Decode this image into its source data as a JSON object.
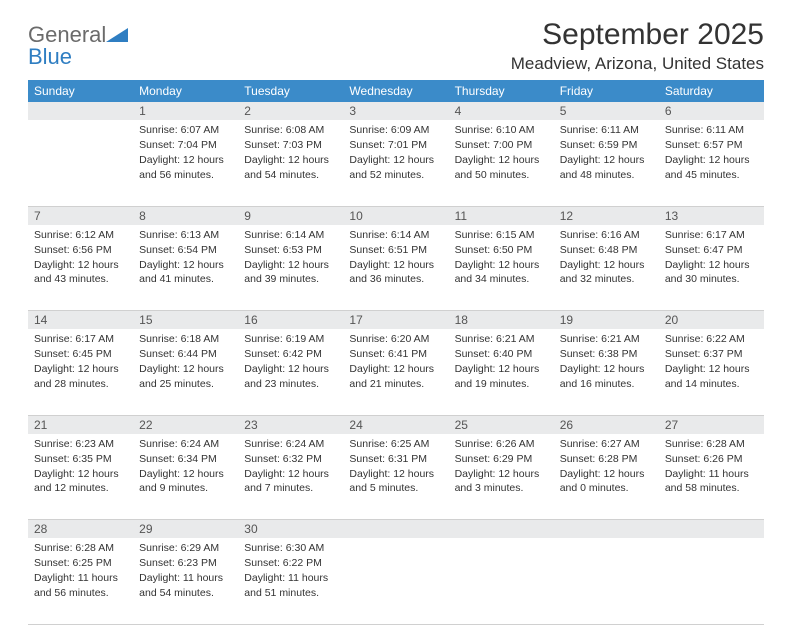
{
  "brand": {
    "text1": "General",
    "text2": "Blue"
  },
  "title": "September 2025",
  "location": "Meadview, Arizona, United States",
  "colors": {
    "header_bg": "#3b8bc9",
    "header_text": "#ffffff",
    "daynum_bg": "#e9eaeb",
    "border": "#d0d0d0",
    "brand_gray": "#6b6b6b",
    "brand_blue": "#2f7ec2"
  },
  "weekdays": [
    "Sunday",
    "Monday",
    "Tuesday",
    "Wednesday",
    "Thursday",
    "Friday",
    "Saturday"
  ],
  "weeks": [
    [
      null,
      {
        "n": "1",
        "sr": "6:07 AM",
        "ss": "7:04 PM",
        "dl": "12 hours and 56 minutes."
      },
      {
        "n": "2",
        "sr": "6:08 AM",
        "ss": "7:03 PM",
        "dl": "12 hours and 54 minutes."
      },
      {
        "n": "3",
        "sr": "6:09 AM",
        "ss": "7:01 PM",
        "dl": "12 hours and 52 minutes."
      },
      {
        "n": "4",
        "sr": "6:10 AM",
        "ss": "7:00 PM",
        "dl": "12 hours and 50 minutes."
      },
      {
        "n": "5",
        "sr": "6:11 AM",
        "ss": "6:59 PM",
        "dl": "12 hours and 48 minutes."
      },
      {
        "n": "6",
        "sr": "6:11 AM",
        "ss": "6:57 PM",
        "dl": "12 hours and 45 minutes."
      }
    ],
    [
      {
        "n": "7",
        "sr": "6:12 AM",
        "ss": "6:56 PM",
        "dl": "12 hours and 43 minutes."
      },
      {
        "n": "8",
        "sr": "6:13 AM",
        "ss": "6:54 PM",
        "dl": "12 hours and 41 minutes."
      },
      {
        "n": "9",
        "sr": "6:14 AM",
        "ss": "6:53 PM",
        "dl": "12 hours and 39 minutes."
      },
      {
        "n": "10",
        "sr": "6:14 AM",
        "ss": "6:51 PM",
        "dl": "12 hours and 36 minutes."
      },
      {
        "n": "11",
        "sr": "6:15 AM",
        "ss": "6:50 PM",
        "dl": "12 hours and 34 minutes."
      },
      {
        "n": "12",
        "sr": "6:16 AM",
        "ss": "6:48 PM",
        "dl": "12 hours and 32 minutes."
      },
      {
        "n": "13",
        "sr": "6:17 AM",
        "ss": "6:47 PM",
        "dl": "12 hours and 30 minutes."
      }
    ],
    [
      {
        "n": "14",
        "sr": "6:17 AM",
        "ss": "6:45 PM",
        "dl": "12 hours and 28 minutes."
      },
      {
        "n": "15",
        "sr": "6:18 AM",
        "ss": "6:44 PM",
        "dl": "12 hours and 25 minutes."
      },
      {
        "n": "16",
        "sr": "6:19 AM",
        "ss": "6:42 PM",
        "dl": "12 hours and 23 minutes."
      },
      {
        "n": "17",
        "sr": "6:20 AM",
        "ss": "6:41 PM",
        "dl": "12 hours and 21 minutes."
      },
      {
        "n": "18",
        "sr": "6:21 AM",
        "ss": "6:40 PM",
        "dl": "12 hours and 19 minutes."
      },
      {
        "n": "19",
        "sr": "6:21 AM",
        "ss": "6:38 PM",
        "dl": "12 hours and 16 minutes."
      },
      {
        "n": "20",
        "sr": "6:22 AM",
        "ss": "6:37 PM",
        "dl": "12 hours and 14 minutes."
      }
    ],
    [
      {
        "n": "21",
        "sr": "6:23 AM",
        "ss": "6:35 PM",
        "dl": "12 hours and 12 minutes."
      },
      {
        "n": "22",
        "sr": "6:24 AM",
        "ss": "6:34 PM",
        "dl": "12 hours and 9 minutes."
      },
      {
        "n": "23",
        "sr": "6:24 AM",
        "ss": "6:32 PM",
        "dl": "12 hours and 7 minutes."
      },
      {
        "n": "24",
        "sr": "6:25 AM",
        "ss": "6:31 PM",
        "dl": "12 hours and 5 minutes."
      },
      {
        "n": "25",
        "sr": "6:26 AM",
        "ss": "6:29 PM",
        "dl": "12 hours and 3 minutes."
      },
      {
        "n": "26",
        "sr": "6:27 AM",
        "ss": "6:28 PM",
        "dl": "12 hours and 0 minutes."
      },
      {
        "n": "27",
        "sr": "6:28 AM",
        "ss": "6:26 PM",
        "dl": "11 hours and 58 minutes."
      }
    ],
    [
      {
        "n": "28",
        "sr": "6:28 AM",
        "ss": "6:25 PM",
        "dl": "11 hours and 56 minutes."
      },
      {
        "n": "29",
        "sr": "6:29 AM",
        "ss": "6:23 PM",
        "dl": "11 hours and 54 minutes."
      },
      {
        "n": "30",
        "sr": "6:30 AM",
        "ss": "6:22 PM",
        "dl": "11 hours and 51 minutes."
      },
      null,
      null,
      null,
      null
    ]
  ],
  "labels": {
    "sunrise": "Sunrise:",
    "sunset": "Sunset:",
    "daylight": "Daylight:"
  }
}
